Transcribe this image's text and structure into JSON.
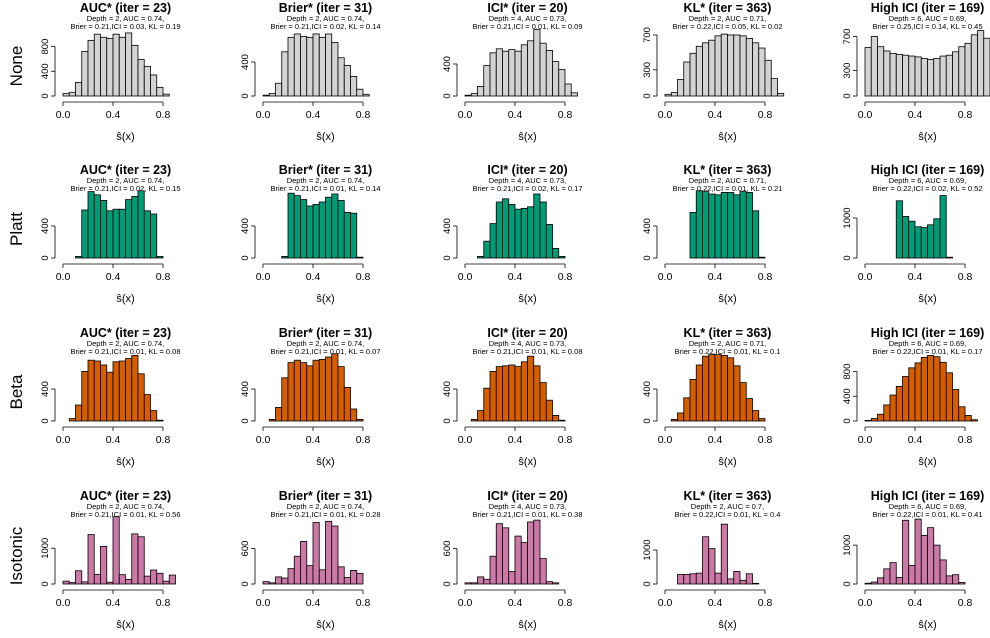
{
  "figure": {
    "row_labels": [
      "None",
      "Platt",
      "Beta",
      "Isotonic"
    ],
    "colors": {
      "None": "#d3d3d3",
      "Platt": "#009b77",
      "Beta": "#d55e00",
      "Isotonic": "#cc79a7"
    }
  },
  "chart_data": [
    {
      "row": 0,
      "col": 0,
      "type": "bar",
      "title": "AUC* (iter = 23)",
      "subtitle1": "Depth = 2, AUC = 0.74,",
      "subtitle2": "Brier = 0.21,ICI = 0.03, KL = 0.19",
      "xlabel": "ŝ(x)",
      "xticks": [
        "0.0",
        "0.4",
        "0.8"
      ],
      "yticks": [
        0,
        400,
        800
      ],
      "ylim": [
        0,
        1100
      ],
      "bin_start": 0,
      "bin_width": 0.05,
      "values": [
        40,
        60,
        220,
        720,
        900,
        1000,
        950,
        930,
        1000,
        950,
        1020,
        820,
        590,
        480,
        340,
        140,
        30
      ]
    },
    {
      "row": 0,
      "col": 1,
      "type": "bar",
      "title": "Brier* (iter = 31)",
      "subtitle1": "Depth = 2, AUC = 0.74,",
      "subtitle2": "Brier = 0.21,ICI = 0.02, KL = 0.14",
      "xlabel": "ŝ(x)",
      "xticks": [
        "0.0",
        "0.4",
        "0.8"
      ],
      "yticks": [
        0,
        400
      ],
      "ylim": [
        0,
        800
      ],
      "bin_start": 0,
      "bin_width": 0.05,
      "values": [
        10,
        30,
        150,
        520,
        690,
        730,
        700,
        690,
        730,
        690,
        730,
        630,
        450,
        360,
        230,
        80,
        20
      ]
    },
    {
      "row": 0,
      "col": 2,
      "type": "bar",
      "title": "ICI* (iter = 20)",
      "subtitle1": "Depth = 4, AUC = 0.73,",
      "subtitle2": "Brier = 0.21,ICI = 0.01, KL = 0.09",
      "xlabel": "ŝ(x)",
      "xticks": [
        "0.0",
        "0.4",
        "0.8"
      ],
      "yticks": [
        0,
        400
      ],
      "ylim": [
        0,
        850
      ],
      "bin_start": 0,
      "bin_width": 0.05,
      "values": [
        10,
        30,
        120,
        380,
        540,
        590,
        560,
        580,
        560,
        640,
        690,
        830,
        660,
        570,
        430,
        330,
        150,
        40
      ]
    },
    {
      "row": 0,
      "col": 3,
      "type": "bar",
      "title": "KL* (iter = 363)",
      "subtitle1": "Depth = 2, AUC = 0.71,",
      "subtitle2": "Brier = 0.22,ICI = 0.05, KL = 0.02",
      "xlabel": "ŝ(x)",
      "xticks": [
        "0.0",
        "0.4",
        "0.8"
      ],
      "yticks": [
        0,
        300,
        700
      ],
      "ylim": [
        0,
        780
      ],
      "bin_start": 0,
      "bin_width": 0.05,
      "values": [
        20,
        40,
        190,
        390,
        490,
        570,
        610,
        640,
        690,
        710,
        700,
        700,
        690,
        660,
        610,
        550,
        410,
        200,
        30
      ]
    },
    {
      "row": 0,
      "col": 4,
      "type": "bar",
      "title": "High ICI (iter = 169)",
      "subtitle1": "Depth = 6, AUC = 0.69,",
      "subtitle2": "Brier = 0.25,ICI = 0.14, KL = 0.45",
      "xlabel": "ŝ(x)",
      "xticks": [
        "0.0",
        "0.4",
        "0.8"
      ],
      "yticks": [
        0,
        300,
        700
      ],
      "ylim": [
        0,
        800
      ],
      "bin_start": 0,
      "bin_width": 0.05,
      "values": [
        570,
        700,
        580,
        530,
        500,
        490,
        480,
        470,
        460,
        440,
        430,
        440,
        470,
        480,
        520,
        580,
        620,
        720,
        770,
        680
      ]
    },
    {
      "row": 1,
      "col": 0,
      "type": "bar",
      "title": "AUC* (iter = 23)",
      "subtitle1": "Depth = 2, AUC = 0.74,",
      "subtitle2": "Brier = 0.21,ICI = 0.02, KL = 0.15",
      "xlabel": "ŝ(x)",
      "xticks": [
        "0.0",
        "0.4",
        "0.8"
      ],
      "yticks": [
        0,
        400
      ],
      "ylim": [
        0,
        850
      ],
      "bin_start": 0.1,
      "bin_width": 0.05,
      "values": [
        20,
        600,
        830,
        790,
        720,
        590,
        610,
        610,
        730,
        770,
        840,
        590,
        550,
        20
      ]
    },
    {
      "row": 1,
      "col": 1,
      "type": "bar",
      "title": "Brier* (iter = 31)",
      "subtitle1": "Depth = 2, AUC = 0.74,",
      "subtitle2": "Brier = 0.21,ICI = 0.01, KL = 0.14",
      "xlabel": "ŝ(x)",
      "xticks": [
        "0.0",
        "0.4",
        "0.8"
      ],
      "yticks": [
        0,
        400
      ],
      "ylim": [
        0,
        850
      ],
      "bin_start": 0.15,
      "bin_width": 0.05,
      "values": [
        20,
        810,
        780,
        730,
        650,
        670,
        700,
        760,
        800,
        720,
        570,
        560,
        10
      ]
    },
    {
      "row": 1,
      "col": 2,
      "type": "bar",
      "title": "ICI* (iter = 20)",
      "subtitle1": "Depth = 4, AUC = 0.73,",
      "subtitle2": "Brier = 0.21,ICI = 0.02, KL = 0.17",
      "xlabel": "ŝ(x)",
      "xticks": [
        "0.0",
        "0.4",
        "0.8"
      ],
      "yticks": [
        0,
        400
      ],
      "ylim": [
        0,
        850
      ],
      "bin_start": 0.1,
      "bin_width": 0.05,
      "values": [
        20,
        210,
        430,
        700,
        740,
        670,
        610,
        620,
        640,
        800,
        700,
        420,
        120,
        20
      ]
    },
    {
      "row": 1,
      "col": 3,
      "type": "bar",
      "title": "KL* (iter = 363)",
      "subtitle1": "Depth = 2, AUC = 0.71,",
      "subtitle2": "Brier = 0.22,ICI = 0.01, KL = 0.21",
      "xlabel": "ŝ(x)",
      "xticks": [
        "0.0",
        "0.4",
        "0.8"
      ],
      "yticks": [
        0,
        400
      ],
      "ylim": [
        0,
        850
      ],
      "bin_start": 0.2,
      "bin_width": 0.05,
      "values": [
        570,
        840,
        830,
        800,
        790,
        820,
        820,
        790,
        830,
        820,
        590,
        10
      ]
    },
    {
      "row": 1,
      "col": 4,
      "type": "bar",
      "title": "High ICI (iter = 169)",
      "subtitle1": "Depth = 6, AUC = 0.69,",
      "subtitle2": "Brier = 0.22,ICI = 0.02, KL = 0.52",
      "xlabel": "ŝ(x)",
      "xticks": [
        "0.0",
        "0.4",
        "0.8"
      ],
      "yticks": [
        0,
        1000
      ],
      "ylim": [
        0,
        1700
      ],
      "bin_start": 0.25,
      "bin_width": 0.05,
      "values": [
        1430,
        1040,
        920,
        780,
        760,
        830,
        980,
        1560,
        20
      ]
    },
    {
      "row": 2,
      "col": 0,
      "type": "bar",
      "title": "AUC* (iter = 23)",
      "subtitle1": "Depth = 2, AUC = 0.74,",
      "subtitle2": "Brier = 0.21,ICI = 0.01, KL = 0.08",
      "xlabel": "ŝ(x)",
      "xticks": [
        "0.0",
        "0.4",
        "0.8"
      ],
      "yticks": [
        0,
        400
      ],
      "ylim": [
        0,
        850
      ],
      "bin_start": 0.05,
      "bin_width": 0.05,
      "values": [
        30,
        200,
        620,
        760,
        750,
        700,
        610,
        740,
        750,
        780,
        820,
        590,
        330,
        130,
        10
      ]
    },
    {
      "row": 2,
      "col": 1,
      "type": "bar",
      "title": "Brier* (iter = 31)",
      "subtitle1": "Depth = 2, AUC = 0.74,",
      "subtitle2": "Brier = 0.21,ICI = 0.01, KL = 0.07",
      "xlabel": "ŝ(x)",
      "xticks": [
        "0.0",
        "0.4",
        "0.8"
      ],
      "yticks": [
        0,
        400
      ],
      "ylim": [
        0,
        850
      ],
      "bin_start": 0.05,
      "bin_width": 0.05,
      "values": [
        20,
        170,
        540,
        730,
        760,
        730,
        690,
        760,
        770,
        800,
        840,
        680,
        420,
        150,
        20
      ]
    },
    {
      "row": 2,
      "col": 2,
      "type": "bar",
      "title": "ICI* (iter = 20)",
      "subtitle1": "Depth = 4, AUC = 0.73,",
      "subtitle2": "Brier = 0.21,ICI = 0.01, KL = 0.08",
      "xlabel": "ŝ(x)",
      "xticks": [
        "0.0",
        "0.4",
        "0.8"
      ],
      "yticks": [
        0,
        400
      ],
      "ylim": [
        0,
        850
      ],
      "bin_start": 0.05,
      "bin_width": 0.05,
      "values": [
        20,
        130,
        410,
        620,
        680,
        690,
        700,
        680,
        740,
        810,
        690,
        480,
        260,
        70,
        10
      ]
    },
    {
      "row": 2,
      "col": 3,
      "type": "bar",
      "title": "KL* (iter = 363)",
      "subtitle1": "Depth = 2, AUC = 0.71,",
      "subtitle2": "Brier = 0.22,ICI = 0.01, KL = 0.1",
      "xlabel": "ŝ(x)",
      "xticks": [
        "0.0",
        "0.4",
        "0.8"
      ],
      "yticks": [
        0,
        400
      ],
      "ylim": [
        0,
        850
      ],
      "bin_start": 0.05,
      "bin_width": 0.05,
      "values": [
        20,
        100,
        290,
        520,
        700,
        810,
        830,
        830,
        820,
        790,
        690,
        480,
        280,
        130,
        30
      ]
    },
    {
      "row": 2,
      "col": 4,
      "type": "bar",
      "title": "High ICI (iter = 169)",
      "subtitle1": "Depth = 6, AUC = 0.69,",
      "subtitle2": "Brier = 0.22,ICI = 0.01, KL = 0.17",
      "xlabel": "ŝ(x)",
      "xticks": [
        "0.0",
        "0.4",
        "0.8"
      ],
      "yticks": [
        0,
        400,
        800
      ],
      "ylim": [
        0,
        1100
      ],
      "bin_start": 0,
      "bin_width": 0.05,
      "values": [
        10,
        40,
        110,
        260,
        420,
        560,
        720,
        860,
        940,
        1030,
        1060,
        1040,
        950,
        780,
        510,
        230,
        90,
        20
      ]
    },
    {
      "row": 3,
      "col": 0,
      "type": "bar",
      "title": "AUC* (iter = 23)",
      "subtitle1": "Depth = 2, AUC = 0.74,",
      "subtitle2": "Brier = 0.21,ICI = 0.01, KL = 0.56",
      "xlabel": "ŝ(x)",
      "xticks": [
        "0.0",
        "0.4",
        "0.8"
      ],
      "yticks": [
        0,
        1000
      ],
      "ylim": [
        0,
        1900
      ],
      "bin_start": 0,
      "bin_width": 0.05,
      "values": [
        80,
        40,
        370,
        60,
        1380,
        270,
        1050,
        50,
        1880,
        260,
        130,
        1400,
        1320,
        220,
        390,
        300,
        80,
        250
      ]
    },
    {
      "row": 3,
      "col": 1,
      "type": "bar",
      "title": "Brier* (iter = 31)",
      "subtitle1": "Depth = 2, AUC = 0.74,",
      "subtitle2": "Brier = 0.21,ICI = 0.01, KL = 0.28",
      "xlabel": "ŝ(x)",
      "xticks": [
        "0.0",
        "0.4",
        "0.8"
      ],
      "yticks": [
        0,
        600
      ],
      "ylim": [
        0,
        1150
      ],
      "bin_start": 0,
      "bin_width": 0.05,
      "values": [
        40,
        20,
        120,
        100,
        260,
        470,
        720,
        310,
        1040,
        240,
        1060,
        980,
        290,
        110,
        230,
        180
      ]
    },
    {
      "row": 3,
      "col": 2,
      "type": "bar",
      "title": "ICI* (iter = 20)",
      "subtitle1": "Depth = 4, AUC = 0.73,",
      "subtitle2": "Brier = 0.21,ICI = 0.01, KL = 0.38",
      "xlabel": "ŝ(x)",
      "xticks": [
        "0.0",
        "0.4",
        "0.8"
      ],
      "yticks": [
        0,
        600
      ],
      "ylim": [
        0,
        1150
      ],
      "bin_start": 0,
      "bin_width": 0.05,
      "values": [
        20,
        20,
        120,
        80,
        470,
        1020,
        950,
        210,
        810,
        700,
        1050,
        1080,
        430,
        40,
        20
      ]
    },
    {
      "row": 3,
      "col": 3,
      "type": "bar",
      "title": "KL* (iter = 363)",
      "subtitle1": "Depth = 2, AUC = 0.7,",
      "subtitle2": "Brier = 0.22,ICI = 0.01, KL = 0.4",
      "xlabel": "ŝ(x)",
      "xticks": [
        "0.0",
        "0.4",
        "0.8"
      ],
      "yticks": [
        0,
        1000
      ],
      "ylim": [
        0,
        2000
      ],
      "bin_start": 0.1,
      "bin_width": 0.05,
      "values": [
        280,
        280,
        300,
        320,
        1390,
        1040,
        320,
        1760,
        150,
        370,
        110,
        300,
        20
      ]
    },
    {
      "row": 3,
      "col": 4,
      "type": "bar",
      "title": "High ICI (iter = 169)",
      "subtitle1": "Depth = 6, AUC = 0.69,",
      "subtitle2": "Brier = 0.22,ICI = 0.01, KL = 0.41",
      "xlabel": "ŝ(x)",
      "xticks": [
        "0.0",
        "0.4",
        "0.8"
      ],
      "yticks": [
        0,
        1000
      ],
      "ylim": [
        0,
        1750
      ],
      "bin_start": 0,
      "bin_width": 0.05,
      "values": [
        20,
        50,
        160,
        390,
        550,
        170,
        1640,
        480,
        1670,
        1250,
        1450,
        1000,
        620,
        210,
        240,
        40
      ]
    }
  ]
}
